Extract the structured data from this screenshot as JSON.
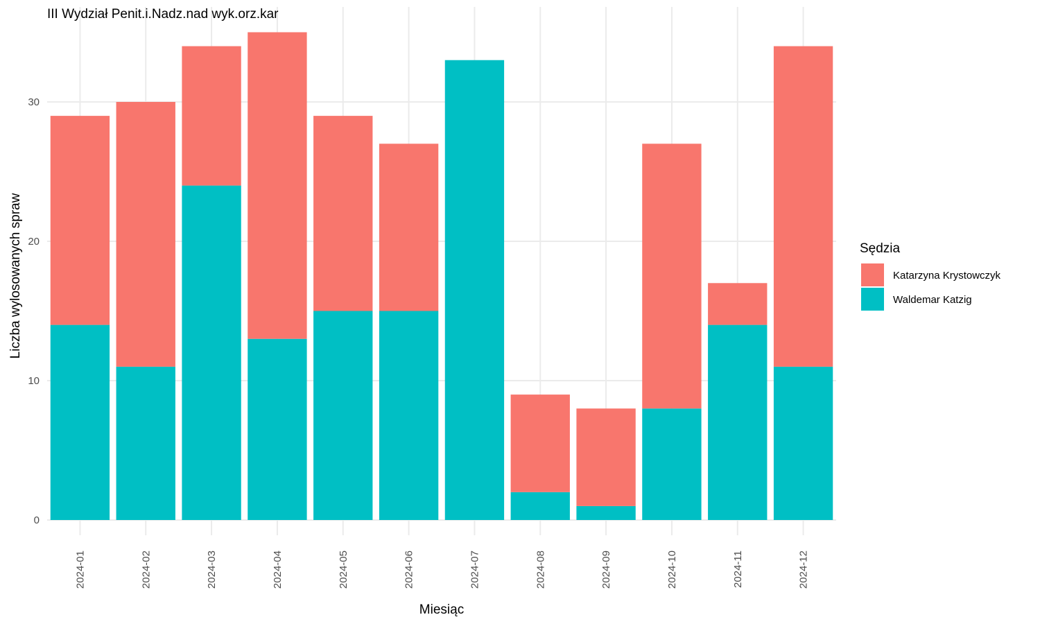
{
  "chart_data": {
    "type": "bar",
    "stacked": true,
    "title": "III Wydział Penit.i.Nadz.nad wyk.orz.kar",
    "xlabel": "Miesiąc",
    "ylabel": "Liczba wylosowanych spraw",
    "categories": [
      "2024-01",
      "2024-02",
      "2024-03",
      "2024-04",
      "2024-05",
      "2024-06",
      "2024-07",
      "2024-08",
      "2024-09",
      "2024-10",
      "2024-11",
      "2024-12"
    ],
    "series": [
      {
        "name": "Waldemar Katzig",
        "color": "#00BFC4",
        "values": [
          14,
          11,
          24,
          13,
          15,
          15,
          33,
          2,
          1,
          8,
          14,
          11
        ]
      },
      {
        "name": "Katarzyna Krystowczyk",
        "color": "#F8766D",
        "values": [
          15,
          19,
          10,
          22,
          14,
          12,
          0,
          7,
          7,
          19,
          3,
          23
        ]
      }
    ],
    "ylim": [
      0,
      35
    ],
    "yticks": [
      0,
      10,
      20,
      30
    ],
    "grid": true,
    "legend": {
      "title": "Sędzia",
      "position": "right",
      "order": [
        "Katarzyna Krystowczyk",
        "Waldemar Katzig"
      ]
    }
  }
}
